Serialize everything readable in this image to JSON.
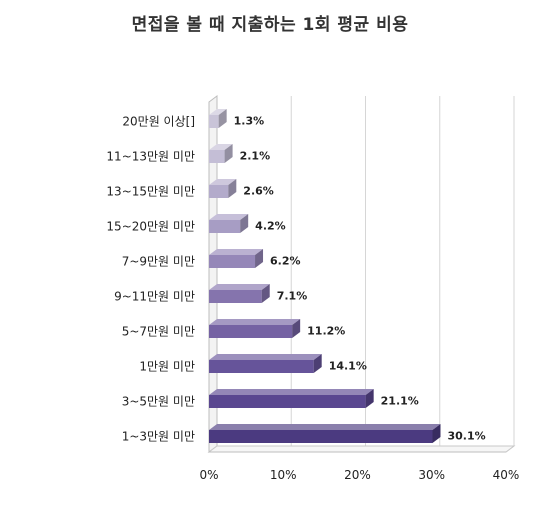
{
  "chart_data": {
    "type": "bar",
    "orientation": "horizontal",
    "title": "면접을 볼 때 지출하는 1회 평균 비용",
    "categories": [
      "20만원 이상[]",
      "11~13만원 미만",
      "13~15만원 미만",
      "15~20만원 미만",
      "7~9만원 미만",
      "9~11만원 미만",
      "5~7만원 미만",
      "1만원 미만",
      "3~5만원 미만",
      "1~3만원 미만"
    ],
    "values": [
      1.3,
      2.1,
      2.6,
      4.2,
      6.2,
      7.1,
      11.2,
      14.1,
      21.1,
      30.1
    ],
    "value_labels": [
      "1.3%",
      "2.1%",
      "2.6%",
      "4.2%",
      "6.2%",
      "7.1%",
      "11.2%",
      "14.1%",
      "21.1%",
      "30.1%"
    ],
    "xlim": [
      0,
      40
    ],
    "x_ticks": [
      "0%",
      "10%",
      "20%",
      "30%",
      "40%"
    ],
    "grid": true,
    "style": "3d",
    "bar_colors": [
      "#c9c4d8",
      "#c4bed6",
      "#b3abcb",
      "#a79dc4",
      "#9587b8",
      "#8574ad",
      "#7562a3",
      "#66549a",
      "#5a4790",
      "#4b3a80"
    ]
  }
}
